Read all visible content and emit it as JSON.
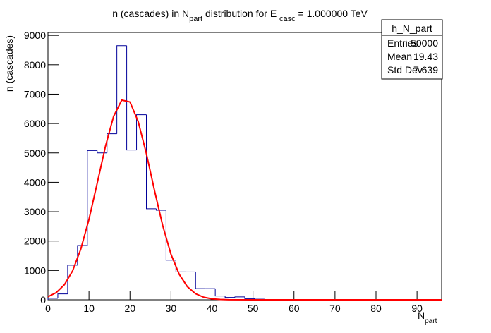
{
  "chart_data": {
    "type": "histogram",
    "title_parts": [
      "n (cascades) in N",
      "part",
      " distribution for E ",
      "casc",
      " = 1.000000 TeV"
    ],
    "x_label_parts": [
      "N",
      "part"
    ],
    "y_label": "n (cascades)",
    "bins": [
      0,
      2.4,
      4.8,
      7.2,
      9.6,
      12,
      14.4,
      16.8,
      19.2,
      21.6,
      24,
      26.4,
      28.8,
      31.2,
      33.6,
      36,
      38.4,
      40.8,
      43.2,
      45.6,
      48,
      50.4,
      52.8,
      55.2,
      57.6,
      60,
      62.4,
      64.8,
      67.2,
      69.6,
      72,
      74.4,
      76.8,
      79.2,
      81.6,
      84,
      86.4,
      88.8,
      91.2,
      93.6,
      96
    ],
    "values": [
      50,
      200,
      1180,
      1850,
      5080,
      5000,
      5650,
      8650,
      5100,
      6300,
      3100,
      3050,
      1350,
      950,
      950,
      380,
      380,
      130,
      80,
      100,
      40,
      20,
      5,
      5,
      0,
      0,
      0,
      0,
      0,
      0,
      0,
      0,
      0,
      0,
      0,
      0,
      0,
      0,
      0,
      0
    ],
    "color": "#000099",
    "fit": {
      "color": "#ff0000",
      "x": [
        0,
        2,
        4,
        6,
        8,
        10,
        12,
        14,
        16,
        18,
        20,
        22,
        24,
        26,
        28,
        30,
        32,
        34,
        36,
        38,
        40,
        42,
        44,
        50,
        96
      ],
      "values": [
        105,
        243,
        514,
        985,
        1724,
        2741,
        3964,
        5215,
        6243,
        6798,
        6734,
        6068,
        4975,
        3710,
        2518,
        1552,
        872,
        446,
        207,
        87,
        34,
        12,
        4,
        0,
        0
      ]
    },
    "xlim": [
      0,
      96
    ],
    "ylim": [
      0,
      9100
    ],
    "xticks": [
      0,
      10,
      20,
      30,
      40,
      50,
      60,
      70,
      80,
      90
    ],
    "yticks": [
      0,
      1000,
      2000,
      3000,
      4000,
      5000,
      6000,
      7000,
      8000,
      9000
    ],
    "stats": {
      "title": "h_N_part",
      "rows": [
        [
          "Entries",
          "50000"
        ],
        [
          "Mean",
          "19.43"
        ],
        [
          "Std Dev",
          "7.639"
        ]
      ]
    }
  }
}
